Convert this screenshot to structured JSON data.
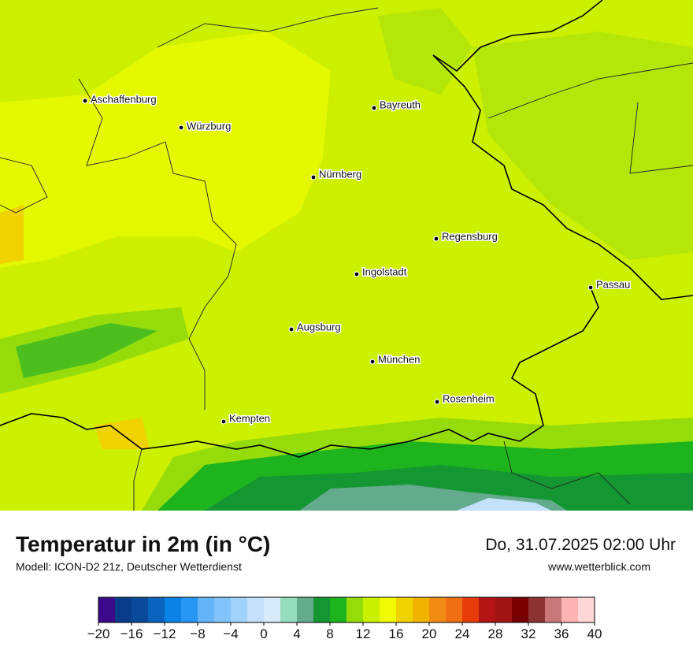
{
  "map": {
    "cities": [
      "Aschaffenburg",
      "Würzburg",
      "Bayreuth",
      "Nürnberg",
      "Regensburg",
      "Ingolstadt",
      "Passau",
      "Augsburg",
      "München",
      "Rosenheim",
      "Kempten"
    ]
  },
  "header": {
    "title": "Temperatur in 2m (in °C)",
    "subtitle": "Modell: ICON-D2 21z, Deutscher Wetterdienst",
    "date": "Do, 31.07.2025 02:00 Uhr",
    "website": "www.wetterblick.com"
  },
  "colorbar": {
    "min": -20,
    "max": 40,
    "colors": [
      "#3b0a8a",
      "#0a3c8c",
      "#0a4a9a",
      "#0a64be",
      "#0a82e6",
      "#2896f5",
      "#64b4fa",
      "#82c3fa",
      "#a0d2fa",
      "#c3e1fa",
      "#d7ebfa",
      "#96dcbe",
      "#64aa8c",
      "#149632",
      "#1eb41e",
      "#96dc0a",
      "#c8f000",
      "#f0fa00",
      "#f0d200",
      "#f0b400",
      "#f08c14",
      "#f06e14",
      "#e63c0a",
      "#b41414",
      "#a01414",
      "#780000",
      "#8c3232",
      "#c87878",
      "#ffb4b4",
      "#ffd7d7"
    ],
    "ticks": [
      {
        "value": -20,
        "label": "−20"
      },
      {
        "value": -16,
        "label": "−16"
      },
      {
        "value": -12,
        "label": "−12"
      },
      {
        "value": -8,
        "label": "−8"
      },
      {
        "value": -4,
        "label": "−4"
      },
      0,
      4,
      8,
      12,
      16,
      20,
      24,
      28,
      32,
      36,
      40
    ]
  }
}
